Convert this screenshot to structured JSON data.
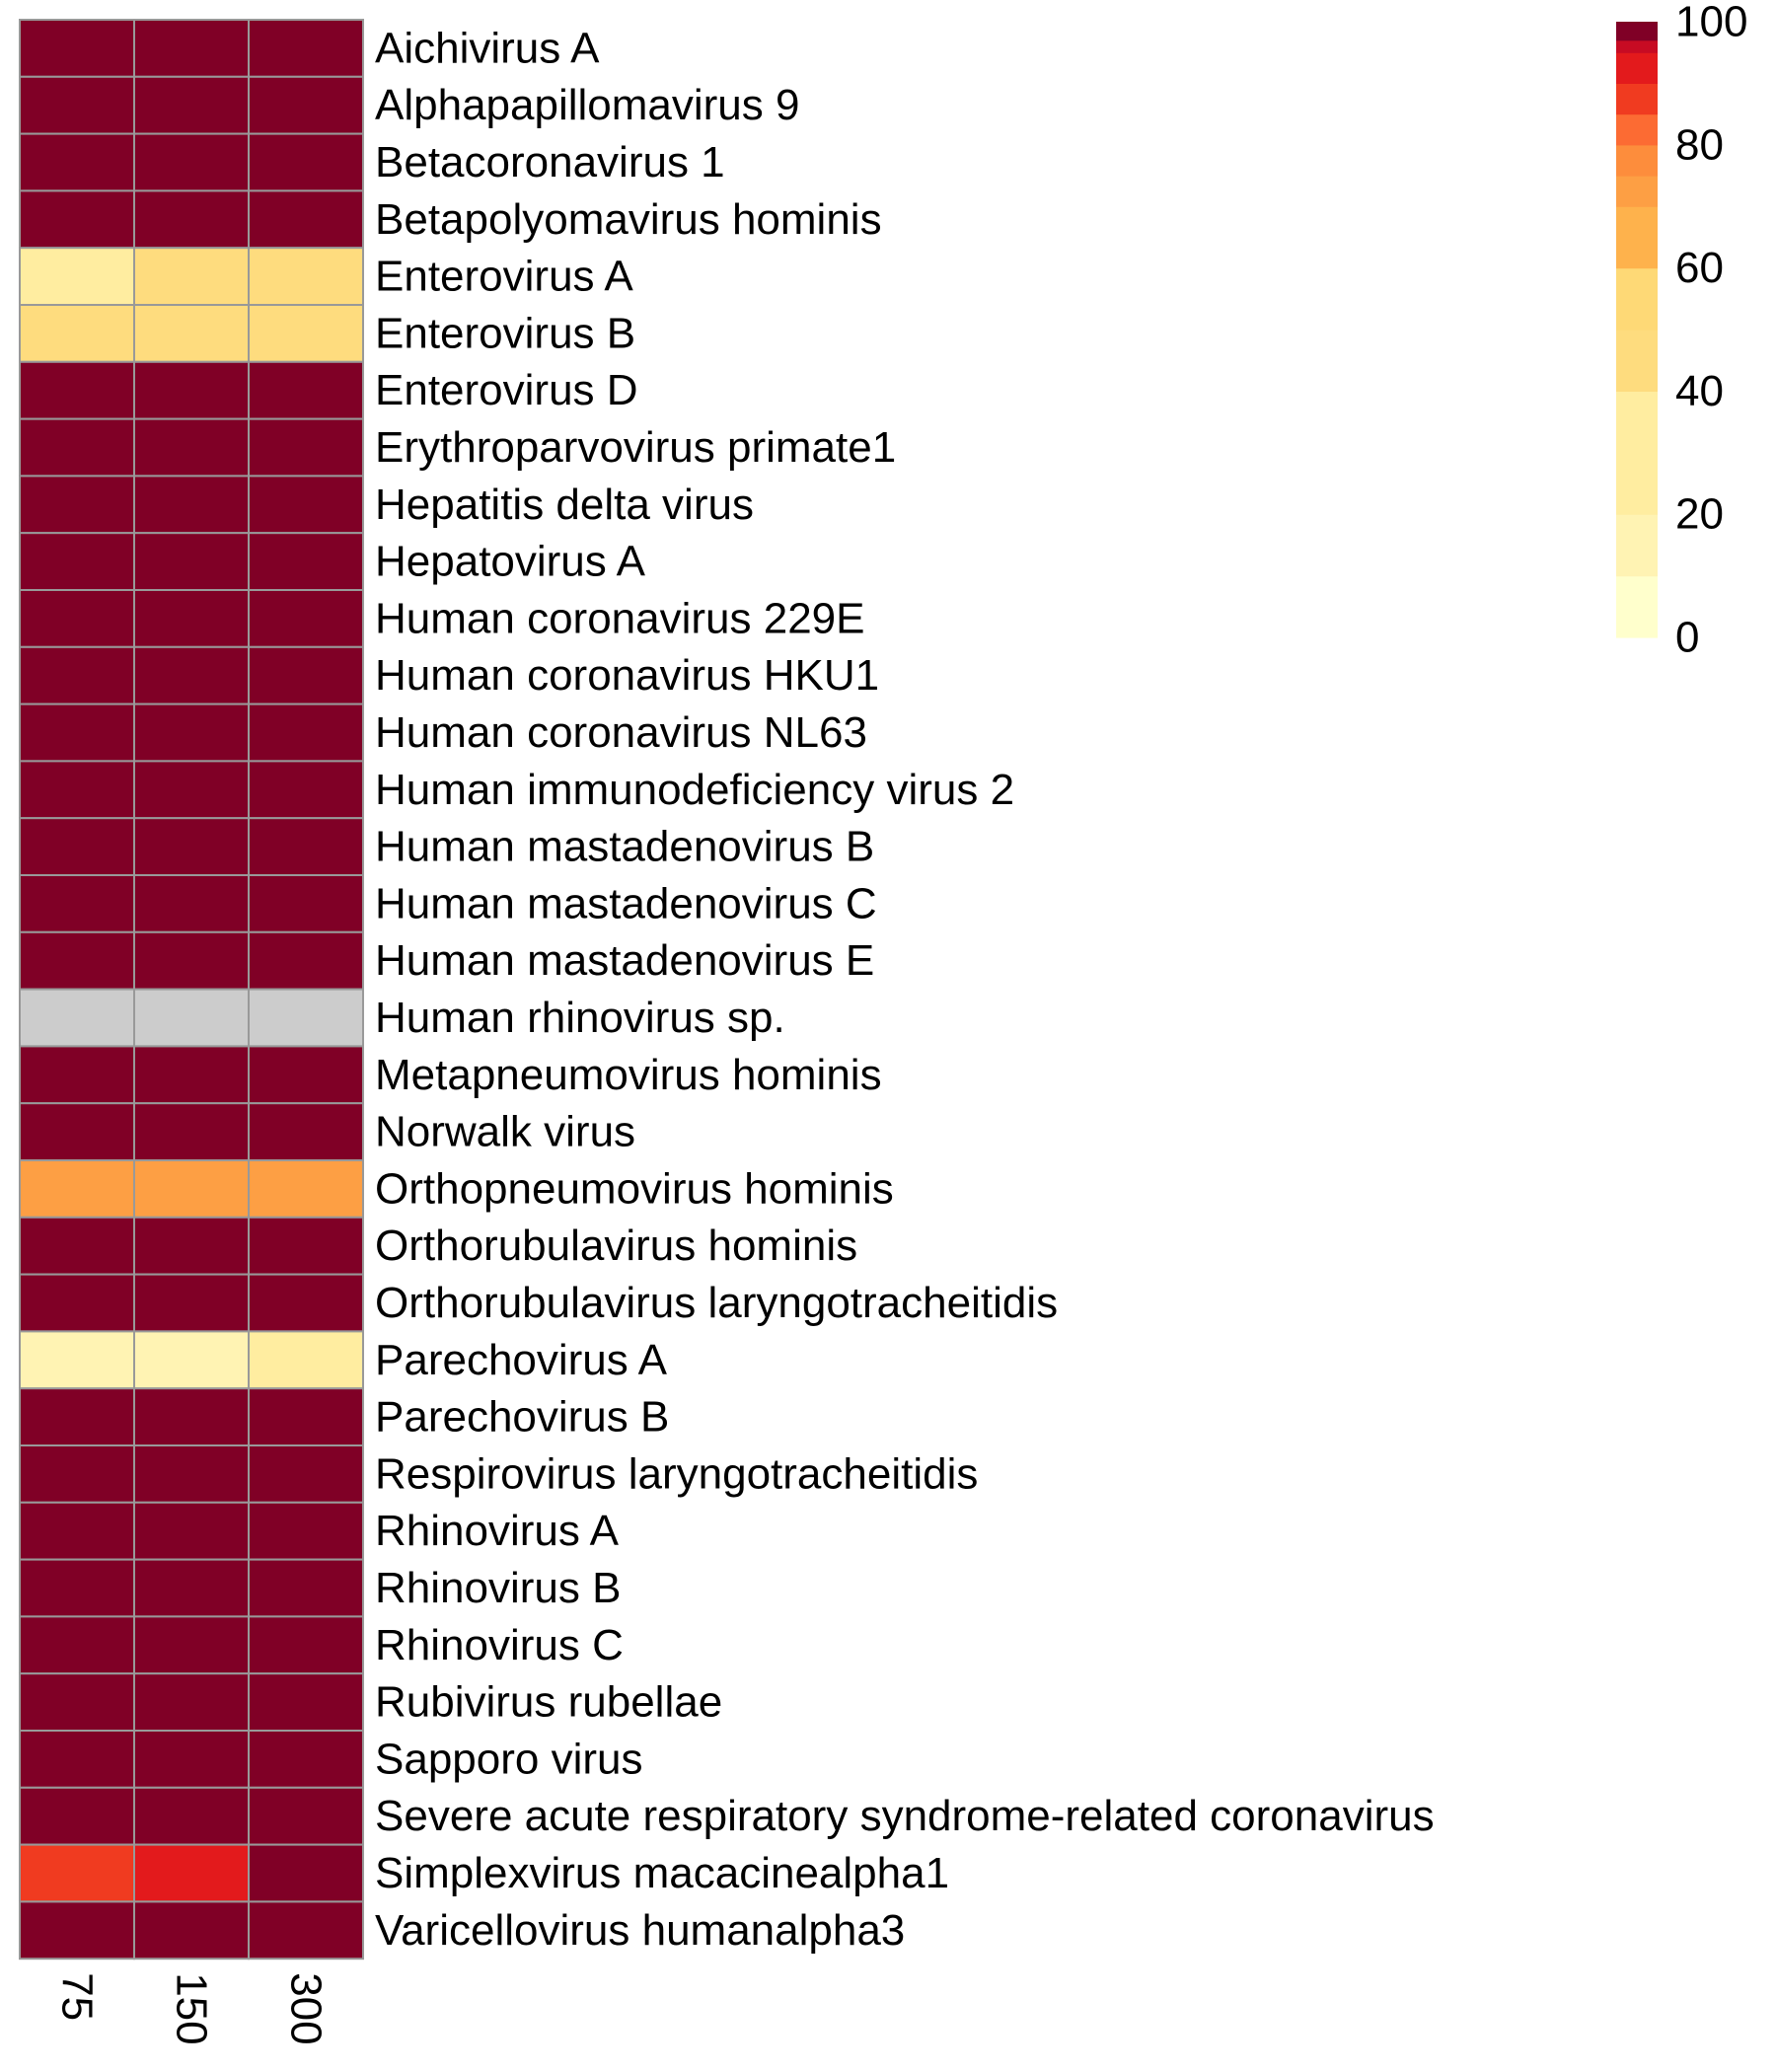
{
  "chart_data": {
    "type": "heatmap",
    "title": "",
    "xlabel": "",
    "ylabel": "",
    "columns": [
      "75",
      "150",
      "300"
    ],
    "rows": [
      "Aichivirus A",
      "Alphapapillomavirus 9",
      "Betacoronavirus 1",
      "Betapolyomavirus hominis",
      "Enterovirus A",
      "Enterovirus B",
      "Enterovirus D",
      "Erythroparvovirus primate1",
      "Hepatitis delta virus",
      "Hepatovirus A",
      "Human coronavirus 229E",
      "Human coronavirus HKU1",
      "Human coronavirus NL63",
      "Human immunodeficiency virus 2",
      "Human mastadenovirus B",
      "Human mastadenovirus C",
      "Human mastadenovirus E",
      "Human rhinovirus sp.",
      "Metapneumovirus hominis",
      "Norwalk virus",
      "Orthopneumovirus hominis",
      "Orthorubulavirus hominis",
      "Orthorubulavirus laryngotracheitidis",
      "Parechovirus A",
      "Parechovirus B",
      "Respirovirus laryngotracheitidis",
      "Rhinovirus A",
      "Rhinovirus B",
      "Rhinovirus C",
      "Rubivirus rubellae",
      "Sapporo virus",
      "Severe acute respiratory syndrome-related coronavirus",
      "Simplexvirus macacinealpha1",
      "Varicellovirus humanalpha3"
    ],
    "values": [
      [
        100,
        100,
        100
      ],
      [
        100,
        100,
        100
      ],
      [
        100,
        100,
        100
      ],
      [
        100,
        100,
        100
      ],
      [
        30,
        45,
        45
      ],
      [
        45,
        45,
        45
      ],
      [
        100,
        100,
        100
      ],
      [
        100,
        100,
        100
      ],
      [
        100,
        100,
        100
      ],
      [
        100,
        100,
        100
      ],
      [
        100,
        100,
        100
      ],
      [
        100,
        100,
        100
      ],
      [
        100,
        100,
        100
      ],
      [
        100,
        100,
        100
      ],
      [
        100,
        100,
        100
      ],
      [
        100,
        100,
        100
      ],
      [
        100,
        100,
        100
      ],
      [
        null,
        null,
        null
      ],
      [
        100,
        100,
        100
      ],
      [
        100,
        100,
        100
      ],
      [
        72,
        72,
        72
      ],
      [
        100,
        100,
        100
      ],
      [
        100,
        100,
        100
      ],
      [
        10,
        10,
        30
      ],
      [
        100,
        100,
        100
      ],
      [
        100,
        100,
        100
      ],
      [
        100,
        100,
        100
      ],
      [
        100,
        100,
        100
      ],
      [
        100,
        100,
        100
      ],
      [
        100,
        100,
        100
      ],
      [
        100,
        100,
        100
      ],
      [
        100,
        100,
        100
      ],
      [
        85,
        90,
        100
      ],
      [
        100,
        100,
        100
      ]
    ],
    "scale": {
      "min": 0,
      "max": 100,
      "ticks": [
        0,
        20,
        40,
        60,
        80,
        100
      ],
      "bins": [
        {
          "from": 0,
          "to": 10,
          "color": "#FFFFCC"
        },
        {
          "from": 10,
          "to": 20,
          "color": "#FFF3B3"
        },
        {
          "from": 20,
          "to": 40,
          "color": "#FFEDA0"
        },
        {
          "from": 40,
          "to": 50,
          "color": "#FEDC7E"
        },
        {
          "from": 50,
          "to": 60,
          "color": "#FED976"
        },
        {
          "from": 60,
          "to": 70,
          "color": "#FEB24C"
        },
        {
          "from": 70,
          "to": 75,
          "color": "#FD9F44"
        },
        {
          "from": 75,
          "to": 80,
          "color": "#FD8D3C"
        },
        {
          "from": 80,
          "to": 85,
          "color": "#FC6B33"
        },
        {
          "from": 85,
          "to": 90,
          "color": "#F03B20"
        },
        {
          "from": 90,
          "to": 95,
          "color": "#E31A1C"
        },
        {
          "from": 95,
          "to": 97,
          "color": "#C70B23"
        },
        {
          "from": 97,
          "to": 100,
          "color": "#800026"
        }
      ]
    },
    "missing_color": "#CCCCCC",
    "grid_color": "#999999",
    "legend_position": "top-right"
  }
}
